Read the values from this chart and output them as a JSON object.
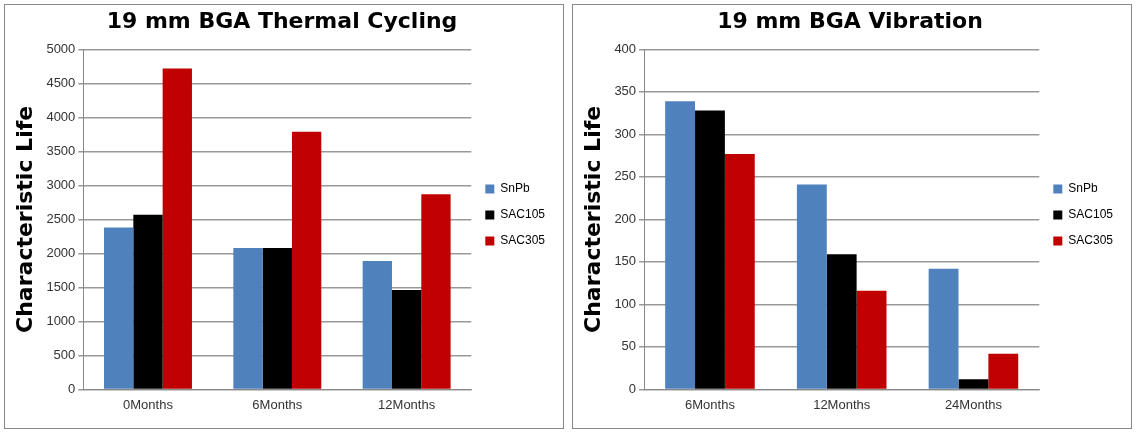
{
  "chart_data": [
    {
      "type": "bar",
      "title": "19 mm BGA Thermal Cycling",
      "ylabel": "Characteristic Life",
      "categories": [
        "0Months",
        "6Months",
        "12Months"
      ],
      "series": [
        {
          "name": "SnPb",
          "color": "#4f81bd",
          "values": [
            2380,
            2080,
            1890
          ]
        },
        {
          "name": "SAC105",
          "color": "#000000",
          "values": [
            2570,
            2080,
            1460
          ]
        },
        {
          "name": "SAC305",
          "color": "#c00000",
          "values": [
            4720,
            3790,
            2870
          ]
        }
      ],
      "ylim": [
        0,
        5000
      ],
      "yticks": [
        0,
        500,
        1000,
        1500,
        2000,
        2500,
        3000,
        3500,
        4000,
        4500,
        5000
      ],
      "grid": "y",
      "legend": "right"
    },
    {
      "type": "bar",
      "title": "19 mm BGA Vibration",
      "ylabel": "Characteristic Life",
      "categories": [
        "6Months",
        "12Months",
        "24Months"
      ],
      "series": [
        {
          "name": "SnPb",
          "color": "#4f81bd",
          "values": [
            339,
            241,
            142
          ]
        },
        {
          "name": "SAC105",
          "color": "#000000",
          "values": [
            328,
            159,
            12
          ]
        },
        {
          "name": "SAC305",
          "color": "#c00000",
          "values": [
            277,
            116,
            42
          ]
        }
      ],
      "ylim": [
        0,
        400
      ],
      "yticks": [
        0,
        50,
        100,
        150,
        200,
        250,
        300,
        350,
        400
      ],
      "grid": "y",
      "legend": "right"
    }
  ]
}
